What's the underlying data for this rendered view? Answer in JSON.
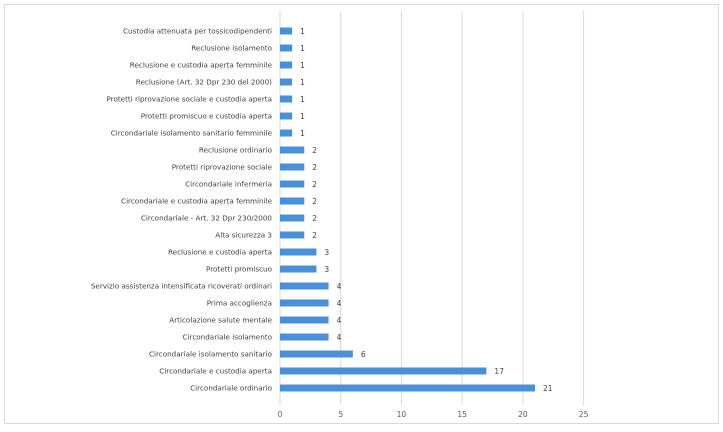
{
  "chart_data": {
    "type": "bar",
    "orientation": "horizontal",
    "title": "",
    "xlabel": "",
    "ylabel": "",
    "xlim": [
      0,
      35
    ],
    "xticks": [
      0,
      5,
      10,
      15,
      20,
      25
    ],
    "grid": true,
    "legend": "none",
    "bar_color": "#4a90d9",
    "categories": [
      "Custodia attenuata per tossicodipendenti",
      "Reclusione isolamento",
      "Reclusione e custodia aperta femminile",
      "Reclusione (Art. 32 Dpr 230 del 2000)",
      "Protetti riprovazione sociale e custodia aperta",
      "Protetti promiscuo e custodia aperta",
      "Circondariale isolamento sanitario femminile",
      "Reclusione ordinario",
      "Protetti riprovazione sociale",
      "Circondariale infermeria",
      "Circondariale e custodia aperta femminile",
      "Circondariale - Art. 32 Dpr 230/2000",
      "Alta sicurezza 3",
      "Reclusione e custodia aperta",
      "Protetti promiscuo",
      "Servizio assistenza intensificata ricoverati ordinari",
      "Prima accoglienza",
      "Articolazione salute mentale",
      "Circondariale isolamento",
      "Circondariale isolamento sanitario",
      "Circondariale e custodia aperta",
      "Circondariale ordinario"
    ],
    "values": [
      1,
      1,
      1,
      1,
      1,
      1,
      1,
      2,
      2,
      2,
      2,
      2,
      2,
      3,
      3,
      4,
      4,
      4,
      4,
      6,
      17,
      21
    ]
  }
}
